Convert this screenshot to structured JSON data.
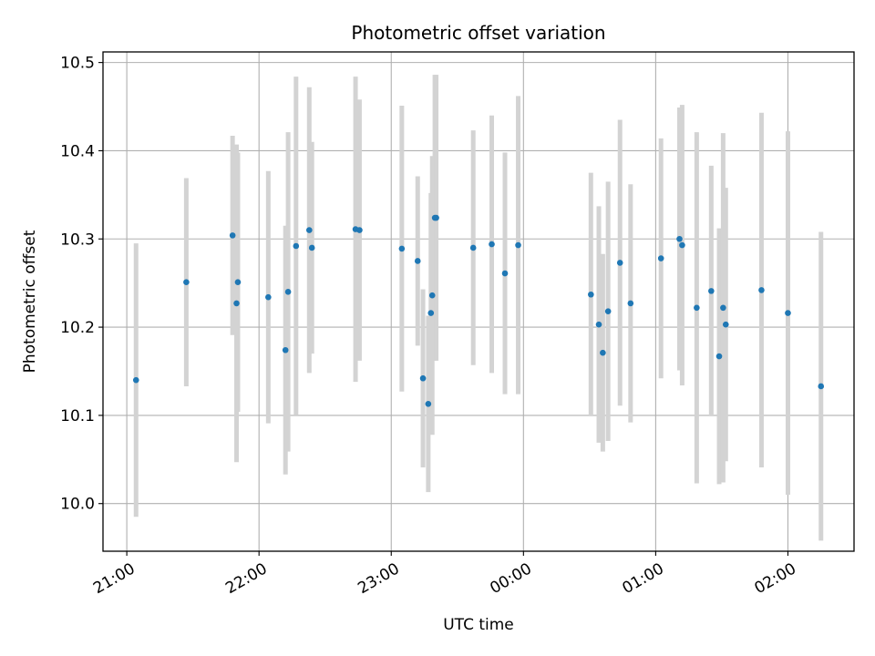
{
  "chart_data": {
    "type": "scatter",
    "title": "Photometric offset variation",
    "xlabel": "UTC time",
    "ylabel": "Photometric offset",
    "x_unit": "hours",
    "x_tick_values": [
      21,
      22,
      23,
      24,
      25,
      26
    ],
    "x_tick_labels": [
      "21:00",
      "22:00",
      "23:00",
      "00:00",
      "01:00",
      "02:00"
    ],
    "y_tick_values": [
      10.0,
      10.1,
      10.2,
      10.3,
      10.4,
      10.5
    ],
    "y_tick_labels": [
      "10.0",
      "10.1",
      "10.2",
      "10.3",
      "10.4",
      "10.5"
    ],
    "xlim": [
      20.82,
      26.5
    ],
    "ylim": [
      9.946,
      10.512
    ],
    "grid": true,
    "colors": {
      "marker": "#1f77b4",
      "errorbar": "#d3d3d3",
      "grid": "#b0b0b0"
    },
    "series": [
      {
        "x": [
          21.07,
          21.45,
          21.8,
          21.83,
          21.84,
          22.07,
          22.2,
          22.22,
          22.28,
          22.38,
          22.4,
          22.73,
          22.76,
          23.08,
          23.2,
          23.24,
          23.28,
          23.3,
          23.31,
          23.33,
          23.34,
          23.62,
          23.76,
          23.86,
          23.96,
          24.51,
          24.57,
          24.6,
          24.64,
          24.73,
          24.81,
          25.04,
          25.18,
          25.2,
          25.31,
          25.42,
          25.48,
          25.51,
          25.53,
          25.8,
          26.0,
          26.25
        ],
        "y": [
          10.14,
          10.251,
          10.304,
          10.227,
          10.251,
          10.234,
          10.174,
          10.24,
          10.292,
          10.31,
          10.29,
          10.311,
          10.31,
          10.289,
          10.275,
          10.142,
          10.113,
          10.216,
          10.236,
          10.324,
          10.324,
          10.29,
          10.294,
          10.261,
          10.293,
          10.237,
          10.203,
          10.171,
          10.218,
          10.273,
          10.227,
          10.278,
          10.3,
          10.293,
          10.222,
          10.241,
          10.167,
          10.222,
          10.203,
          10.242,
          10.216,
          10.133
        ],
        "yerr": [
          0.155,
          0.118,
          0.113,
          0.18,
          0.147,
          0.143,
          0.141,
          0.181,
          0.192,
          0.162,
          0.12,
          0.173,
          0.148,
          0.162,
          0.096,
          0.101,
          0.1,
          0.136,
          0.158,
          0.162,
          0.162,
          0.133,
          0.146,
          0.137,
          0.169,
          0.138,
          0.134,
          0.112,
          0.147,
          0.162,
          0.135,
          0.136,
          0.149,
          0.159,
          0.199,
          0.142,
          0.145,
          0.198,
          0.155,
          0.201,
          0.206,
          0.175
        ]
      }
    ]
  }
}
